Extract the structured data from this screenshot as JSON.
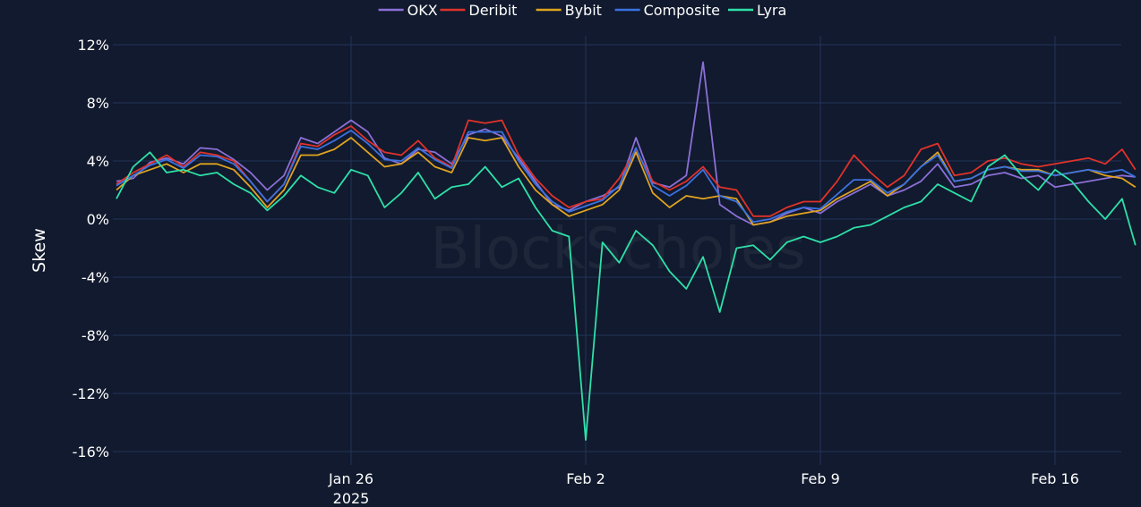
{
  "chart_data": {
    "type": "line",
    "ylabel": "Skew",
    "xlabel": "",
    "x_tick_labels": [
      "Jan 26",
      "Feb 2",
      "Feb 9",
      "Feb 16"
    ],
    "x_tick_days": [
      26,
      33,
      40,
      47
    ],
    "x_year_label": "2025",
    "x_range_days": [
      19,
      49.4
    ],
    "x_date_note": "January 2025 day numbers (Feb 2 = 33)",
    "y_tick_labels": [
      "12%",
      "8%",
      "4%",
      "0%",
      "-4%",
      "-8%",
      "-12%",
      "-16%"
    ],
    "y_ticks": [
      12,
      8,
      4,
      0,
      -4,
      -8,
      -12,
      -16
    ],
    "ylim": [
      -17.5,
      12.6
    ],
    "grid": true,
    "legend_position": "top-center",
    "series": [
      {
        "name": "OKX",
        "color": "#8b6fd6",
        "x": [
          19.0,
          19.5,
          20.0,
          20.5,
          21.0,
          21.5,
          22.0,
          22.5,
          23.0,
          23.5,
          24.0,
          24.5,
          25.0,
          25.5,
          26.0,
          26.5,
          27.0,
          27.5,
          28.0,
          28.5,
          29.0,
          29.5,
          30.0,
          30.5,
          31.0,
          31.5,
          32.0,
          32.5,
          33.0,
          33.5,
          34.0,
          34.5,
          35.0,
          35.5,
          36.0,
          36.5,
          37.0,
          37.5,
          38.0,
          38.5,
          39.0,
          39.5,
          40.0,
          40.5,
          41.0,
          41.5,
          42.0,
          42.5,
          43.0,
          43.5,
          44.0,
          44.5,
          45.0,
          45.5,
          46.0,
          46.5,
          47.0,
          47.5,
          48.0,
          48.5,
          49.0,
          49.4
        ],
        "values": [
          2.6,
          2.8,
          3.9,
          4.2,
          3.8,
          4.9,
          4.8,
          4.1,
          3.2,
          2.0,
          3.0,
          5.6,
          5.2,
          6.0,
          6.8,
          6.0,
          4.2,
          3.8,
          4.8,
          4.6,
          3.8,
          5.8,
          6.2,
          5.7,
          4.2,
          2.6,
          1.0,
          0.6,
          1.2,
          1.6,
          2.2,
          5.6,
          2.5,
          2.2,
          3.0,
          10.8,
          1.0,
          0.2,
          -0.4,
          -0.2,
          0.4,
          0.8,
          0.4,
          1.2,
          1.8,
          2.4,
          1.6,
          2.0,
          2.6,
          3.8,
          2.2,
          2.4,
          3.0,
          3.2,
          2.8,
          3.0,
          2.2,
          2.4,
          2.6,
          2.8,
          3.0,
          2.9
        ]
      },
      {
        "name": "Deribit",
        "color": "#e0322a",
        "x": [
          19.0,
          19.5,
          20.0,
          20.5,
          21.0,
          21.5,
          22.0,
          22.5,
          23.0,
          23.5,
          24.0,
          24.5,
          25.0,
          25.5,
          26.0,
          26.5,
          27.0,
          27.5,
          28.0,
          28.5,
          29.0,
          29.5,
          30.0,
          30.5,
          31.0,
          31.5,
          32.0,
          32.5,
          33.0,
          33.5,
          34.0,
          34.5,
          35.0,
          35.5,
          36.0,
          36.5,
          37.0,
          37.5,
          38.0,
          38.5,
          39.0,
          39.5,
          40.0,
          40.5,
          41.0,
          41.5,
          42.0,
          42.5,
          43.0,
          43.5,
          44.0,
          44.5,
          45.0,
          45.5,
          46.0,
          46.5,
          47.0,
          47.5,
          48.0,
          48.5,
          49.0,
          49.4
        ],
        "values": [
          2.4,
          3.2,
          3.8,
          4.4,
          3.6,
          4.6,
          4.4,
          4.0,
          2.6,
          1.2,
          2.4,
          5.2,
          5.0,
          5.8,
          6.4,
          5.4,
          4.6,
          4.4,
          5.4,
          4.2,
          3.6,
          6.8,
          6.6,
          6.8,
          4.4,
          2.8,
          1.6,
          0.8,
          1.2,
          1.4,
          2.8,
          4.8,
          2.6,
          2.0,
          2.6,
          3.6,
          2.2,
          2.0,
          0.2,
          0.2,
          0.8,
          1.2,
          1.2,
          2.6,
          4.4,
          3.2,
          2.2,
          3.0,
          4.8,
          5.2,
          3.0,
          3.2,
          4.0,
          4.2,
          3.8,
          3.6,
          3.8,
          4.0,
          4.2,
          3.8,
          4.8,
          3.4
        ]
      },
      {
        "name": "Bybit",
        "color": "#e0a320",
        "x": [
          19.0,
          19.5,
          20.0,
          20.5,
          21.0,
          21.5,
          22.0,
          22.5,
          23.0,
          23.5,
          24.0,
          24.5,
          25.0,
          25.5,
          26.0,
          26.5,
          27.0,
          27.5,
          28.0,
          28.5,
          29.0,
          29.5,
          30.0,
          30.5,
          31.0,
          31.5,
          32.0,
          32.5,
          33.0,
          33.5,
          34.0,
          34.5,
          35.0,
          35.5,
          36.0,
          36.5,
          37.0,
          37.5,
          38.0,
          38.5,
          39.0,
          39.5,
          40.0,
          40.5,
          41.0,
          41.5,
          42.0,
          42.5,
          43.0,
          43.5,
          44.0,
          44.5,
          45.0,
          45.5,
          46.0,
          46.5,
          47.0,
          47.5,
          48.0,
          48.5,
          49.0,
          49.4
        ],
        "values": [
          2.0,
          3.0,
          3.4,
          3.8,
          3.2,
          3.8,
          3.8,
          3.4,
          2.2,
          0.8,
          2.0,
          4.4,
          4.4,
          4.8,
          5.6,
          4.6,
          3.6,
          3.8,
          4.6,
          3.6,
          3.2,
          5.6,
          5.4,
          5.6,
          3.6,
          2.0,
          1.0,
          0.2,
          0.6,
          1.0,
          2.0,
          4.6,
          1.8,
          0.8,
          1.6,
          1.4,
          1.6,
          1.4,
          -0.4,
          -0.2,
          0.2,
          0.4,
          0.6,
          1.4,
          2.0,
          2.6,
          1.6,
          2.4,
          3.6,
          4.6,
          2.6,
          2.8,
          3.4,
          3.6,
          3.4,
          3.4,
          3.0,
          3.2,
          3.4,
          3.0,
          2.8,
          2.2
        ]
      },
      {
        "name": "Composite",
        "color": "#3b72e0",
        "x": [
          19.0,
          19.5,
          20.0,
          20.5,
          21.0,
          21.5,
          22.0,
          22.5,
          23.0,
          23.5,
          24.0,
          24.5,
          25.0,
          25.5,
          26.0,
          26.5,
          27.0,
          27.5,
          28.0,
          28.5,
          29.0,
          29.5,
          30.0,
          30.5,
          31.0,
          31.5,
          32.0,
          32.5,
          33.0,
          33.5,
          34.0,
          34.5,
          35.0,
          35.5,
          36.0,
          36.5,
          37.0,
          37.5,
          38.0,
          38.5,
          39.0,
          39.5,
          40.0,
          40.5,
          41.0,
          41.5,
          42.0,
          42.5,
          43.0,
          43.5,
          44.0,
          44.5,
          45.0,
          45.5,
          46.0,
          46.5,
          47.0,
          47.5,
          48.0,
          48.5,
          49.0,
          49.4
        ],
        "values": [
          2.3,
          3.0,
          3.7,
          4.1,
          3.5,
          4.4,
          4.3,
          3.8,
          2.6,
          1.2,
          2.4,
          5.0,
          4.8,
          5.4,
          6.1,
          5.2,
          4.1,
          4.0,
          4.9,
          4.1,
          3.5,
          6.0,
          6.0,
          6.0,
          4.0,
          2.4,
          1.2,
          0.5,
          0.9,
          1.3,
          2.3,
          4.9,
          2.3,
          1.6,
          2.3,
          3.4,
          1.6,
          1.2,
          -0.2,
          0.0,
          0.5,
          0.8,
          0.7,
          1.7,
          2.7,
          2.7,
          1.8,
          2.4,
          3.6,
          4.4,
          2.6,
          2.8,
          3.4,
          3.6,
          3.3,
          3.3,
          3.0,
          3.2,
          3.4,
          3.2,
          3.4,
          2.9
        ]
      },
      {
        "name": "Lyra",
        "color": "#2ee0a8",
        "x": [
          19.0,
          19.5,
          20.0,
          20.5,
          21.0,
          21.5,
          22.0,
          22.5,
          23.0,
          23.5,
          24.0,
          24.5,
          25.0,
          25.5,
          26.0,
          26.5,
          27.0,
          27.5,
          28.0,
          28.5,
          29.0,
          29.5,
          30.0,
          30.5,
          31.0,
          31.5,
          32.0,
          32.5,
          33.0,
          33.5,
          34.0,
          34.5,
          35.0,
          35.5,
          36.0,
          36.5,
          37.0,
          37.5,
          38.0,
          38.5,
          39.0,
          39.5,
          40.0,
          40.5,
          41.0,
          41.5,
          42.0,
          42.5,
          43.0,
          43.5,
          44.0,
          44.5,
          45.0,
          45.5,
          46.0,
          46.5,
          47.0,
          47.5,
          48.0,
          48.5,
          49.0,
          49.4
        ],
        "values": [
          1.4,
          3.6,
          4.6,
          3.2,
          3.4,
          3.0,
          3.2,
          2.4,
          1.8,
          0.6,
          1.6,
          3.0,
          2.2,
          1.8,
          3.4,
          3.0,
          0.8,
          1.8,
          3.2,
          1.4,
          2.2,
          2.4,
          3.6,
          2.2,
          2.8,
          0.8,
          -0.8,
          -1.2,
          -15.2,
          -1.6,
          -3.0,
          -0.8,
          -1.8,
          -3.6,
          -4.8,
          -2.6,
          -6.4,
          -2.0,
          -1.8,
          -2.8,
          -1.6,
          -1.2,
          -1.6,
          -1.2,
          -0.6,
          -0.4,
          0.2,
          0.8,
          1.2,
          2.4,
          1.8,
          1.2,
          3.6,
          4.4,
          3.0,
          2.0,
          3.4,
          2.6,
          1.2,
          0.0,
          1.4,
          -1.8
        ]
      }
    ]
  },
  "watermark": "BlockScholes"
}
